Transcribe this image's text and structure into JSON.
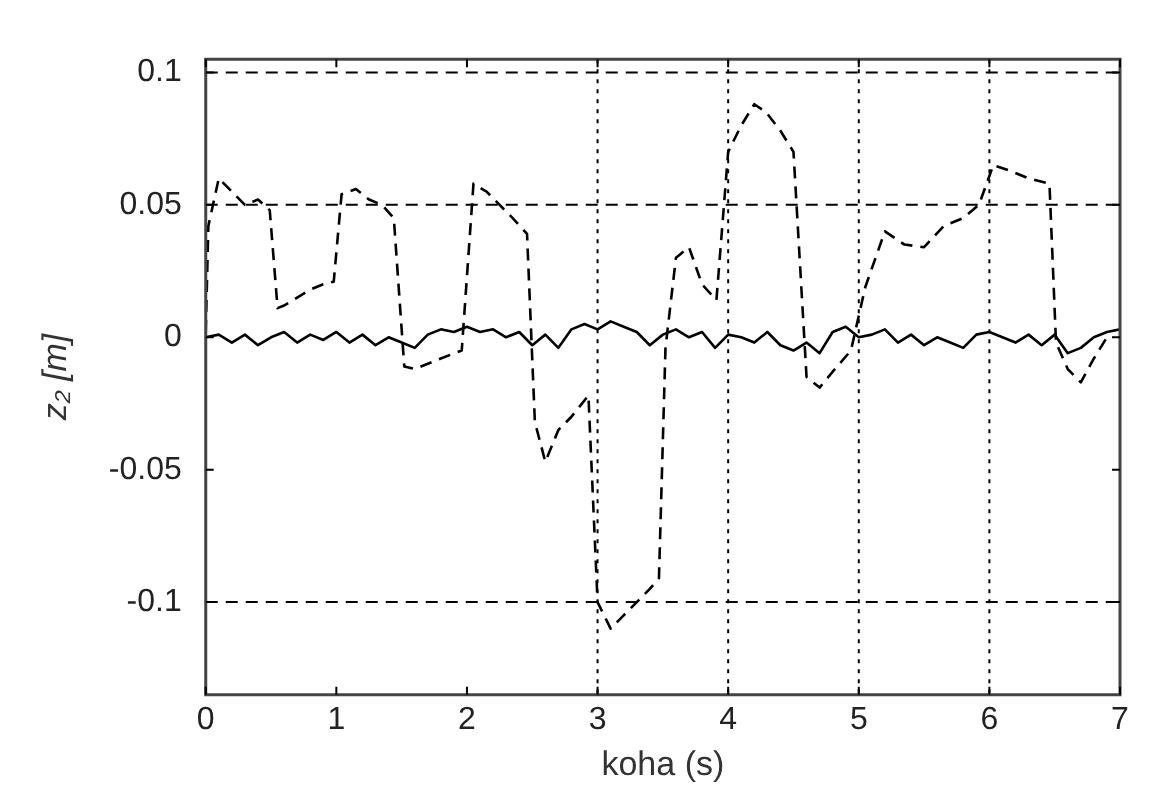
{
  "chart_data": {
    "type": "line",
    "xlabel": "koha (s)",
    "ylabel": "z₂ [m]",
    "xlim": [
      0,
      7
    ],
    "xticks": [
      0,
      1,
      2,
      3,
      4,
      5,
      6,
      7
    ],
    "ylim": [
      -0.135,
      0.105
    ],
    "yticks": [
      -0.1,
      -0.05,
      0,
      0.05,
      0.1
    ],
    "grid": false,
    "legend": false,
    "marker": "none",
    "ref_lines": [
      {
        "axis": "y",
        "value": 0.1,
        "color": "#000000",
        "line_style": "dashed"
      },
      {
        "axis": "y",
        "value": 0.05,
        "color": "#000000",
        "line_style": "dashed"
      },
      {
        "axis": "y",
        "value": -0.1,
        "color": "#000000",
        "line_style": "dashed"
      },
      {
        "axis": "x",
        "value": 3,
        "color": "#000000",
        "line_style": "dotted"
      },
      {
        "axis": "x",
        "value": 4,
        "color": "#000000",
        "line_style": "dotted"
      },
      {
        "axis": "x",
        "value": 5,
        "color": "#000000",
        "line_style": "dotted"
      },
      {
        "axis": "x",
        "value": 6,
        "color": "#000000",
        "line_style": "dotted"
      }
    ],
    "series": [
      {
        "color": "#000000",
        "line_style": "dashed",
        "x": [
          0,
          0.02,
          0.1,
          0.2,
          0.3,
          0.4,
          0.49,
          0.55,
          0.6,
          0.7,
          0.8,
          0.9,
          0.98,
          1.04,
          1.15,
          1.25,
          1.35,
          1.44,
          1.52,
          1.6,
          1.7,
          1.8,
          1.96,
          2.05,
          2.15,
          2.25,
          2.35,
          2.46,
          2.52,
          2.6,
          2.7,
          2.8,
          2.93,
          3.0,
          3.1,
          3.2,
          3.3,
          3.4,
          3.47,
          3.52,
          3.6,
          3.7,
          3.8,
          3.91,
          4.0,
          4.1,
          4.2,
          4.29,
          4.4,
          4.5,
          4.6,
          4.7,
          4.8,
          4.94,
          5.05,
          5.2,
          5.35,
          5.5,
          5.65,
          5.8,
          5.92,
          6.03,
          6.15,
          6.3,
          6.46,
          6.51,
          6.6,
          6.7,
          6.8,
          6.9
        ],
        "values": [
          0.002,
          0.042,
          0.06,
          0.055,
          0.05,
          0.052,
          0.048,
          0.011,
          0.012,
          0.015,
          0.018,
          0.02,
          0.021,
          0.054,
          0.056,
          0.052,
          0.05,
          0.045,
          -0.011,
          -0.012,
          -0.01,
          -0.008,
          -0.005,
          0.058,
          0.055,
          0.05,
          0.045,
          0.039,
          -0.032,
          -0.047,
          -0.035,
          -0.03,
          -0.022,
          -0.1,
          -0.11,
          -0.105,
          -0.1,
          -0.095,
          -0.091,
          -0.004,
          0.03,
          0.034,
          0.02,
          0.014,
          0.07,
          0.08,
          0.088,
          0.085,
          0.078,
          0.07,
          -0.015,
          -0.019,
          -0.013,
          -0.005,
          0.019,
          0.04,
          0.035,
          0.034,
          0.042,
          0.045,
          0.05,
          0.065,
          0.063,
          0.06,
          0.058,
          -0.002,
          -0.012,
          -0.017,
          -0.008,
          0.0
        ]
      },
      {
        "color": "#000000",
        "line_style": "solid",
        "x": [
          0,
          0.1,
          0.2,
          0.3,
          0.4,
          0.5,
          0.6,
          0.7,
          0.8,
          0.9,
          1.0,
          1.1,
          1.2,
          1.3,
          1.4,
          1.5,
          1.6,
          1.7,
          1.8,
          1.9,
          2.0,
          2.1,
          2.2,
          2.3,
          2.4,
          2.5,
          2.6,
          2.7,
          2.8,
          2.9,
          3.0,
          3.1,
          3.2,
          3.3,
          3.4,
          3.5,
          3.6,
          3.7,
          3.8,
          3.9,
          4.0,
          4.1,
          4.2,
          4.3,
          4.4,
          4.5,
          4.6,
          4.7,
          4.8,
          4.9,
          5.0,
          5.1,
          5.2,
          5.3,
          5.4,
          5.5,
          5.6,
          5.7,
          5.8,
          5.9,
          6.0,
          6.1,
          6.2,
          6.3,
          6.4,
          6.5,
          6.6,
          6.7,
          6.8,
          6.9,
          7.0
        ],
        "values": [
          0.0,
          0.001,
          -0.002,
          0.001,
          -0.003,
          0.0,
          0.002,
          -0.002,
          0.001,
          -0.001,
          0.002,
          -0.002,
          0.001,
          -0.003,
          0.0,
          -0.002,
          -0.004,
          0.001,
          0.003,
          0.002,
          0.004,
          0.002,
          0.003,
          0.0,
          0.002,
          -0.003,
          0.001,
          -0.004,
          0.003,
          0.005,
          0.003,
          0.006,
          0.004,
          0.002,
          -0.003,
          0.001,
          0.003,
          0.0,
          0.002,
          -0.004,
          0.001,
          0.0,
          -0.002,
          0.002,
          -0.003,
          -0.005,
          -0.002,
          -0.006,
          0.002,
          0.004,
          0.0,
          0.001,
          0.003,
          -0.002,
          0.001,
          -0.003,
          0.0,
          -0.002,
          -0.004,
          0.001,
          0.002,
          0.0,
          -0.002,
          0.001,
          -0.003,
          0.001,
          -0.006,
          -0.004,
          0.0,
          0.002,
          0.003
        ]
      }
    ]
  }
}
